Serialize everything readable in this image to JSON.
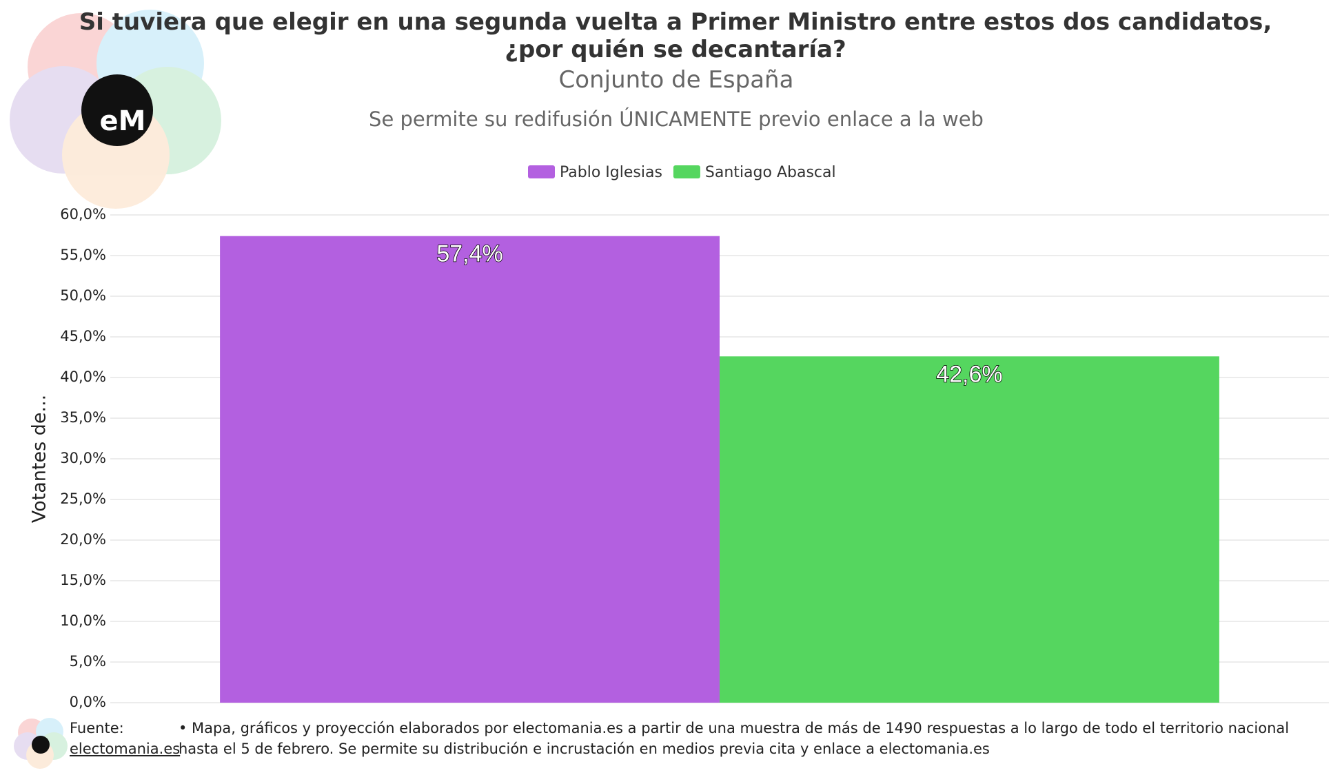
{
  "chart_data": {
    "type": "bar",
    "title": "Si tuviera que elegir en una segunda vuelta a Primer Ministro entre estos dos candidatos, ¿por quién se decantaría?",
    "subtitle": "Conjunto de España",
    "note": "Se permite su redifusión ÚNICAMENTE previo enlace a la web",
    "y_label": "Votantes de...",
    "categories": [
      null
    ],
    "series": [
      {
        "name": "Pablo Iglesias",
        "color": "#b360e0",
        "values": [
          57.4
        ],
        "value_labels": [
          "57,4%"
        ]
      },
      {
        "name": "Santiago Abascal",
        "color": "#55d65f",
        "values": [
          42.6
        ],
        "value_labels": [
          "42,6%"
        ]
      }
    ],
    "ylim": [
      0,
      60
    ],
    "yticks": [
      {
        "value": 0,
        "label": "0,0%"
      },
      {
        "value": 5,
        "label": "5,0%"
      },
      {
        "value": 10,
        "label": "10,0%"
      },
      {
        "value": 15,
        "label": "15,0%"
      },
      {
        "value": 20,
        "label": "20,0%"
      },
      {
        "value": 25,
        "label": "25,0%"
      },
      {
        "value": 30,
        "label": "30,0%"
      },
      {
        "value": 35,
        "label": "35,0%"
      },
      {
        "value": 40,
        "label": "40,0%"
      },
      {
        "value": 45,
        "label": "45,0%"
      },
      {
        "value": 50,
        "label": "50,0%"
      },
      {
        "value": 55,
        "label": "55,0%"
      },
      {
        "value": 60,
        "label": "60,0%"
      }
    ],
    "grid": true,
    "legend": "top"
  },
  "footer": {
    "source_label": "Fuente:",
    "source_link": "electomania.es",
    "text": "• Mapa, gráficos y proyección elaborados por electomania.es a partir de una muestra de más de 1490 respuestas a lo largo de todo el territorio nacional hasta el 5 de febrero. Se permite su distribución e incrustación en medios previa cita y enlace a electomania.es"
  }
}
